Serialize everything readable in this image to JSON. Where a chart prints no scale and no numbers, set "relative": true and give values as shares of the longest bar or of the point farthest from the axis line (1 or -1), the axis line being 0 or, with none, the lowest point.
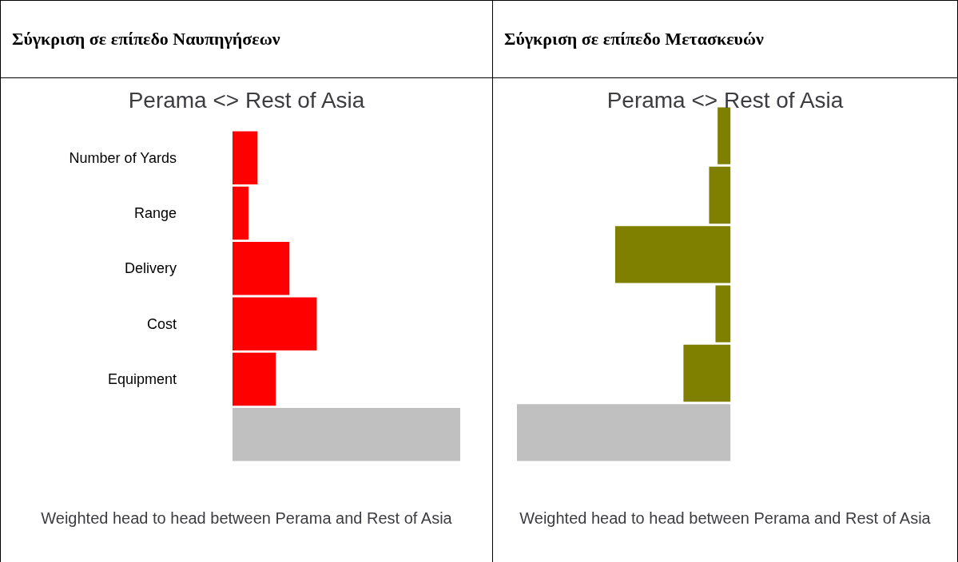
{
  "chart_data": [
    {
      "type": "bar",
      "orientation": "horizontal",
      "relative": true,
      "title": "Σύγκριση σε επίπεδο Ναυπηγήσεων",
      "subtitle": "Perama <> Rest of Asia",
      "xlabel": "Weighted head to head between Perama and Rest of Asia",
      "categories": [
        "Number of Yards",
        "Range",
        "Delivery",
        "Cost",
        "Equipment",
        null
      ],
      "values": [
        0.11,
        0.07,
        0.25,
        0.37,
        0.19,
        1
      ],
      "colors": [
        "#ff0000",
        "#ff0000",
        "#ff0000",
        "#ff0000",
        "#ff0000",
        "#c0c0c0"
      ]
    },
    {
      "type": "bar",
      "orientation": "horizontal",
      "relative": true,
      "title": "Σύγκριση σε επίπεδο Μετασκευών",
      "subtitle": "Perama <> Rest of Asia",
      "xlabel": "Weighted head to head between Perama and Rest of Asia",
      "categories": [
        null,
        null,
        null,
        null,
        null,
        null
      ],
      "values": [
        -0.06,
        -0.1,
        -0.54,
        -0.07,
        -0.22,
        -1
      ],
      "colors": [
        "#808000",
        "#808000",
        "#808000",
        "#808000",
        "#808000",
        "#c0c0c0"
      ]
    }
  ]
}
